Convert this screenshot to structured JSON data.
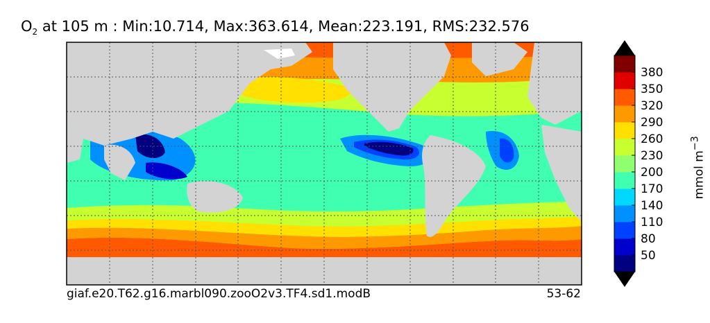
{
  "chart_data": {
    "type": "heatmap",
    "title_var": "O",
    "title_sub": "2",
    "title_rest": "at 105 m : Min:10.714, Max:363.614, Mean:223.191, RMS:232.576",
    "footer_left": "giaf.e20.T62.g16.marbl090.zooO2v3.TF4.sd1.modB",
    "footer_right": "53-62",
    "colorbar": {
      "label": "mmol m",
      "label_sup": "−3",
      "ticks": [
        "50",
        "80",
        "110",
        "140",
        "170",
        "200",
        "230",
        "260",
        "290",
        "320",
        "350",
        "380"
      ],
      "levels": [
        20,
        50,
        80,
        110,
        140,
        170,
        200,
        230,
        260,
        290,
        320,
        350,
        380
      ],
      "colors": [
        "#000080",
        "#0000cd",
        "#0040ff",
        "#0090ff",
        "#00d8ff",
        "#40ffb0",
        "#90ff70",
        "#c8ff30",
        "#ffe000",
        "#ff9900",
        "#ff5a00",
        "#e00000",
        "#800000"
      ],
      "extend": "both"
    },
    "map": {
      "projection": "global ocean, longitude/latitude",
      "land_color": "#d3d3d3",
      "gridlines": "dotted",
      "min": 10.714,
      "max": 363.614,
      "mean": 223.191,
      "rms": 232.576
    }
  }
}
